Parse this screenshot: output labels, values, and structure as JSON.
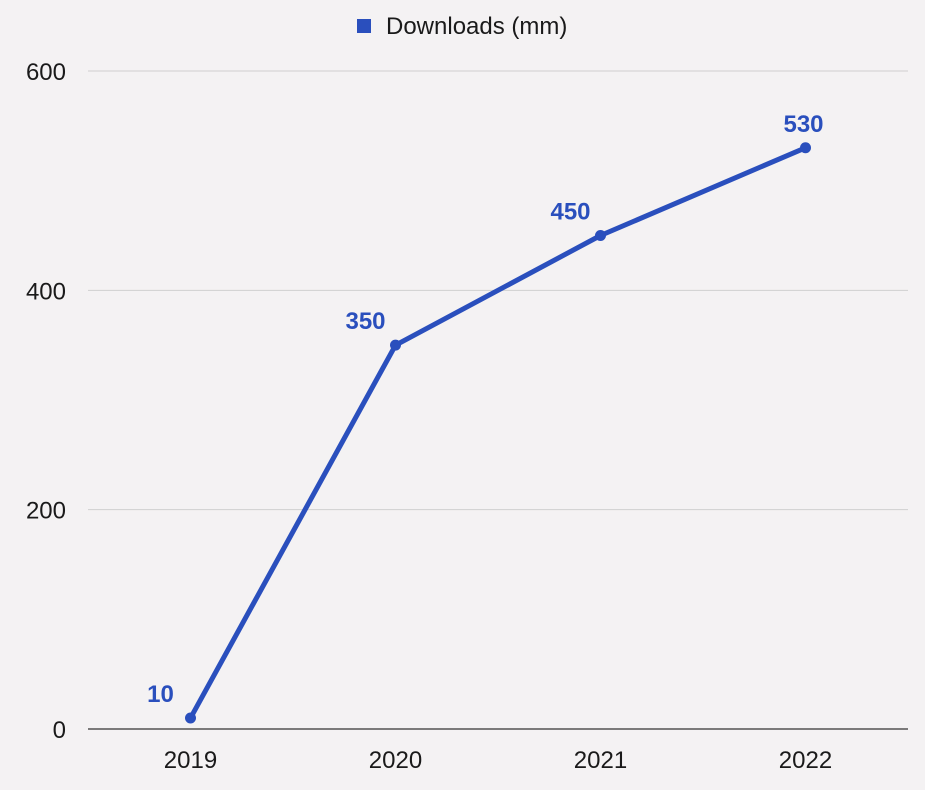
{
  "chart_data": {
    "type": "line",
    "categories": [
      "2019",
      "2020",
      "2021",
      "2022"
    ],
    "series": [
      {
        "name": "Downloads (mm)",
        "values": [
          10,
          350,
          450,
          530
        ]
      }
    ],
    "ylim": [
      0,
      600
    ],
    "yticks": [
      0,
      200,
      400,
      600
    ],
    "grid": true,
    "legend": "top-center",
    "colors": {
      "series": "#2a4fbd",
      "label": "#2a4fbd",
      "grid": "#cfcfcf",
      "axis": "#333333"
    },
    "title": "",
    "xlabel": "",
    "ylabel": ""
  }
}
